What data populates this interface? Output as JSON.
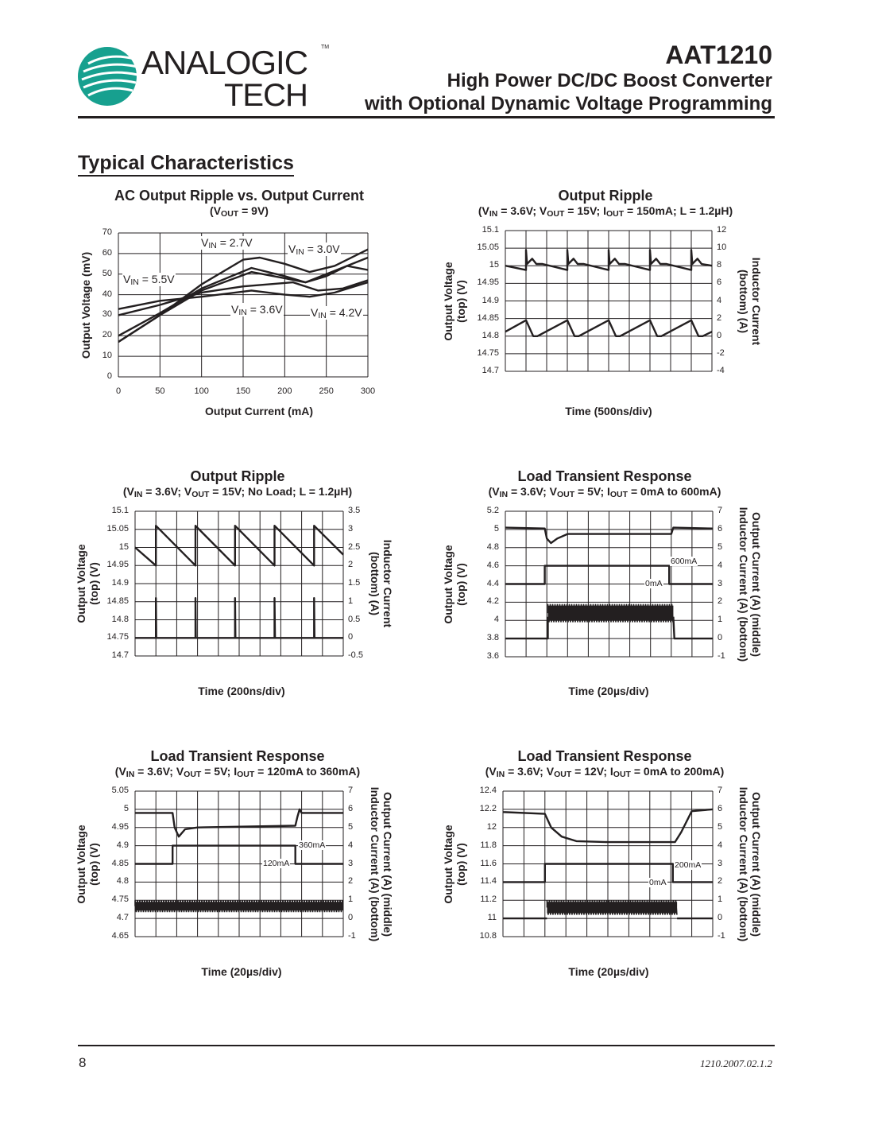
{
  "header": {
    "logo_text_top": "ANALOGIC",
    "logo_text_bottom": "TECH",
    "logo_tm": "TM",
    "logo_color": "#17a08f",
    "part_number": "AAT1210",
    "subtitle_line1": "High Power DC/DC Boost Converter",
    "subtitle_line2": "with Optional Dynamic Voltage Programming"
  },
  "section_title": "Typical Characteristics",
  "footer": {
    "page_number": "8",
    "doc_code": "1210.2007.02.1.2"
  },
  "chart_data": [
    {
      "type": "line",
      "title": "AC Output Ripple vs. Output Current",
      "subtitle": "(VOUT = 9V)",
      "xlabel": "Output Current (mA)",
      "ylabel": "Output Voltage (mV)",
      "xlim": [
        0,
        300
      ],
      "ylim": [
        0,
        70
      ],
      "xticks": [
        "0",
        "50",
        "100",
        "150",
        "200",
        "250",
        "300"
      ],
      "yticks": [
        "70",
        "60",
        "50",
        "40",
        "30",
        "20",
        "10",
        "0"
      ],
      "grid": true,
      "series": [
        {
          "name": "VIN = 2.7V",
          "axis": "left",
          "points": [
            [
              0,
              17
            ],
            [
              50,
              30
            ],
            [
              100,
              45
            ],
            [
              150,
              57
            ],
            [
              170,
              58
            ],
            [
              200,
              55
            ],
            [
              230,
              51
            ],
            [
              260,
              54
            ],
            [
              300,
              62
            ]
          ]
        },
        {
          "name": "VIN = 3.0V",
          "axis": "left",
          "points": [
            [
              0,
              20
            ],
            [
              50,
              31
            ],
            [
              100,
              43
            ],
            [
              160,
              53
            ],
            [
              200,
              49
            ],
            [
              225,
              46
            ],
            [
              250,
              49
            ],
            [
              275,
              54
            ],
            [
              300,
              52
            ]
          ]
        },
        {
          "name": "VIN = 5.5V",
          "axis": "left",
          "points": [
            [
              0,
              33
            ],
            [
              50,
              37
            ],
            [
              100,
              39
            ],
            [
              160,
              42
            ],
            [
              200,
              40
            ],
            [
              230,
              39
            ],
            [
              260,
              41
            ],
            [
              300,
              46
            ]
          ]
        },
        {
          "name": "VIN = 3.6V",
          "axis": "left",
          "points": [
            [
              0,
              17
            ],
            [
              50,
              30
            ],
            [
              100,
              42
            ],
            [
              160,
              51
            ],
            [
              200,
              48
            ],
            [
              225,
              46
            ],
            [
              250,
              50
            ],
            [
              300,
              58
            ]
          ]
        },
        {
          "name": "VIN = 4.2V",
          "axis": "left",
          "points": [
            [
              0,
              30
            ],
            [
              50,
              35
            ],
            [
              100,
              41
            ],
            [
              150,
              44
            ],
            [
              210,
              46
            ],
            [
              240,
              42
            ],
            [
              270,
              43
            ],
            [
              300,
              47
            ]
          ]
        }
      ]
    },
    {
      "type": "line",
      "title": "Output Ripple",
      "subtitle": "(VIN = 3.6V; VOUT = 15V; IOUT = 150mA; L = 1.2µH)",
      "xlabel": "Time (500ns/div)",
      "ylabel": [
        "Output Voltage",
        "(top) (V)"
      ],
      "y2label": [
        "Inductor Current",
        "(bottom) (A)"
      ],
      "xlim": [
        0,
        10
      ],
      "ylim": [
        14.7,
        15.1
      ],
      "y2lim": [
        -4,
        12
      ],
      "yticks": [
        "15.1",
        "15.05",
        "15",
        "14.95",
        "14.9",
        "14.85",
        "14.8",
        "14.75",
        "14.7"
      ],
      "y2ticks": [
        "12",
        "10",
        "8",
        "6",
        "4",
        "2",
        "0",
        "-2",
        "-4"
      ],
      "grid": true,
      "series": [
        {
          "axis": "left",
          "points": [
            [
              0,
              15.0
            ],
            [
              1,
              14.988
            ],
            [
              1,
              15.045
            ],
            [
              1.05,
              15.005
            ],
            [
              1.3,
              15.02
            ],
            [
              1.5,
              15.005
            ],
            [
              1.8,
              15.005
            ],
            [
              3,
              14.988
            ],
            [
              3,
              15.045
            ],
            [
              3.05,
              15.005
            ],
            [
              3.3,
              15.02
            ],
            [
              3.5,
              15.005
            ],
            [
              3.8,
              15.005
            ],
            [
              5,
              14.988
            ],
            [
              5,
              15.045
            ],
            [
              5.05,
              15.005
            ],
            [
              5.3,
              15.02
            ],
            [
              5.5,
              15.005
            ],
            [
              5.8,
              15.005
            ],
            [
              7,
              14.988
            ],
            [
              7,
              15.045
            ],
            [
              7.05,
              15.005
            ],
            [
              7.3,
              15.02
            ],
            [
              7.5,
              15.005
            ],
            [
              7.8,
              15.005
            ],
            [
              9,
              14.988
            ],
            [
              9,
              15.045
            ],
            [
              9.05,
              15.005
            ],
            [
              9.3,
              15.02
            ],
            [
              9.5,
              15.005
            ],
            [
              10,
              15.0
            ]
          ]
        },
        {
          "axis": "right",
          "points": [
            [
              0,
              0.5
            ],
            [
              1,
              1.8
            ],
            [
              1.35,
              0
            ],
            [
              1.55,
              0
            ],
            [
              3,
              1.8
            ],
            [
              3.35,
              0
            ],
            [
              3.55,
              0
            ],
            [
              5,
              1.8
            ],
            [
              5.35,
              0
            ],
            [
              5.55,
              0
            ],
            [
              7,
              1.8
            ],
            [
              7.35,
              0
            ],
            [
              7.55,
              0
            ],
            [
              9,
              1.8
            ],
            [
              9.35,
              0
            ],
            [
              9.55,
              0
            ],
            [
              10,
              0.5
            ]
          ]
        }
      ]
    },
    {
      "type": "line",
      "title": "Output Ripple",
      "subtitle": "(VIN = 3.6V; VOUT = 15V; No Load; L = 1.2µH)",
      "xlabel": "Time (200ns/div)",
      "ylabel": [
        "Output Voltage",
        "(top) (V)"
      ],
      "y2label": [
        "Inductor Current",
        "(bottom) (A)"
      ],
      "xlim": [
        0,
        10
      ],
      "ylim": [
        14.7,
        15.1
      ],
      "y2lim": [
        -0.5,
        3.5
      ],
      "yticks": [
        "15.1",
        "15.05",
        "15",
        "14.95",
        "14.9",
        "14.85",
        "14.8",
        "14.75",
        "14.7"
      ],
      "y2ticks": [
        "3.5",
        "3",
        "2.5",
        "2",
        "1.5",
        "1",
        "0.5",
        "0",
        "-0.5"
      ],
      "grid": true,
      "series": [
        {
          "axis": "left",
          "points": [
            [
              0,
              15.0
            ],
            [
              1,
              14.95
            ],
            [
              1,
              15.06
            ],
            [
              2.9,
              14.95
            ],
            [
              2.9,
              15.06
            ],
            [
              4.8,
              14.95
            ],
            [
              4.8,
              15.06
            ],
            [
              6.7,
              14.95
            ],
            [
              6.7,
              15.06
            ],
            [
              8.6,
              14.95
            ],
            [
              8.6,
              15.06
            ],
            [
              10,
              14.98
            ]
          ]
        },
        {
          "axis": "right",
          "points": [
            [
              0,
              0
            ],
            [
              1,
              0
            ],
            [
              1,
              1.1
            ],
            [
              1.02,
              0
            ],
            [
              2.9,
              0
            ],
            [
              2.9,
              1.1
            ],
            [
              2.92,
              0
            ],
            [
              4.8,
              0
            ],
            [
              4.8,
              1.1
            ],
            [
              4.82,
              0
            ],
            [
              6.7,
              0
            ],
            [
              6.7,
              1.1
            ],
            [
              6.72,
              0
            ],
            [
              8.6,
              0
            ],
            [
              8.6,
              1.1
            ],
            [
              8.62,
              0
            ],
            [
              10,
              0
            ]
          ]
        }
      ]
    },
    {
      "type": "line",
      "title": "Load Transient Response",
      "subtitle": "(VIN = 3.6V; VOUT = 5V; IOUT = 0mA to 600mA)",
      "xlabel": "Time (20µs/div)",
      "ylabel": [
        "Output Voltage",
        "(top) (V)"
      ],
      "y2label": [
        "Output Current (A) (middle)",
        "Inductor Current (A) (bottom)"
      ],
      "xlim": [
        0,
        10
      ],
      "ylim": [
        3.6,
        5.2
      ],
      "y2lim": [
        -1,
        7
      ],
      "yticks": [
        "5.2",
        "5",
        "4.8",
        "4.6",
        "4.4",
        "4.2",
        "4",
        "3.8",
        "3.6"
      ],
      "y2ticks": [
        "7",
        "6",
        "5",
        "4",
        "3",
        "2",
        "1",
        "0",
        "-1"
      ],
      "grid": true,
      "annotations": [
        "600mA",
        "0mA"
      ],
      "series": [
        {
          "axis": "left",
          "points": [
            [
              0,
              5.02
            ],
            [
              1.9,
              5.01
            ],
            [
              2.0,
              4.9
            ],
            [
              2.2,
              4.85
            ],
            [
              2.5,
              4.9
            ],
            [
              3,
              4.95
            ],
            [
              4,
              4.95
            ],
            [
              8.0,
              4.95
            ],
            [
              8.1,
              5.02
            ],
            [
              10,
              5.01
            ]
          ]
        },
        {
          "axis": "right",
          "points": [
            [
              0,
              3
            ],
            [
              1.9,
              3
            ],
            [
              1.9,
              4
            ],
            [
              7.9,
              4
            ],
            [
              7.9,
              3
            ],
            [
              10,
              3
            ]
          ]
        },
        {
          "axis": "right",
          "points": [
            [
              0,
              0
            ],
            [
              2.05,
              0
            ],
            [
              2.05,
              1.2
            ]
          ]
        },
        {
          "axis": "right",
          "band": {
            "x": [
              2.05,
              8.1
            ],
            "y": [
              0.9,
              1.9
            ]
          }
        },
        {
          "axis": "right",
          "points": [
            [
              8.1,
              1.2
            ],
            [
              8.15,
              0
            ],
            [
              10,
              0
            ]
          ]
        }
      ]
    },
    {
      "type": "line",
      "title": "Load Transient Response",
      "subtitle": "(VIN = 3.6V; VOUT = 5V; IOUT = 120mA to 360mA)",
      "xlabel": "Time (20µs/div)",
      "ylabel": [
        "Output Voltage",
        "(top) (V)"
      ],
      "y2label": [
        "Output Current (A) (middle)",
        "Inductor Current (A) (bottom)"
      ],
      "xlim": [
        0,
        10
      ],
      "ylim": [
        4.65,
        5.05
      ],
      "y2lim": [
        -1,
        7
      ],
      "yticks": [
        "5.05",
        "5",
        "4.95",
        "4.9",
        "4.85",
        "4.8",
        "4.75",
        "4.7",
        "4.65"
      ],
      "y2ticks": [
        "7",
        "6",
        "5",
        "4",
        "3",
        "2",
        "1",
        "0",
        "-1"
      ],
      "grid": true,
      "annotations": [
        "360mA",
        "120mA"
      ],
      "series": [
        {
          "axis": "left",
          "points": [
            [
              0,
              4.99
            ],
            [
              1.8,
              4.99
            ],
            [
              1.9,
              4.95
            ],
            [
              2.1,
              4.925
            ],
            [
              2.4,
              4.945
            ],
            [
              3,
              4.95
            ],
            [
              7.7,
              4.955
            ],
            [
              7.8,
              4.98
            ],
            [
              7.9,
              5.0
            ],
            [
              8.0,
              4.99
            ],
            [
              10,
              4.99
            ]
          ]
        },
        {
          "axis": "right",
          "points": [
            [
              0,
              3
            ],
            [
              1.8,
              3
            ],
            [
              1.8,
              4
            ],
            [
              7.7,
              4
            ],
            [
              7.7,
              3
            ],
            [
              10,
              3
            ]
          ]
        },
        {
          "axis": "right",
          "band": {
            "x": [
              0,
              10
            ],
            "y": [
              0.35,
              1.0
            ]
          }
        }
      ]
    },
    {
      "type": "line",
      "title": "Load Transient Response",
      "subtitle": "(VIN = 3.6V; VOUT = 12V; IOUT = 0mA to 200mA)",
      "xlabel": "Time (20µs/div)",
      "ylabel": [
        "Output Voltage",
        "(top) (V)"
      ],
      "y2label": [
        "Output Current (A) (middle)",
        "Inductor Current (A) (bottom)"
      ],
      "xlim": [
        0,
        10
      ],
      "ylim": [
        10.8,
        12.4
      ],
      "y2lim": [
        -1,
        7
      ],
      "yticks": [
        "12.4",
        "12.2",
        "12",
        "11.8",
        "11.6",
        "11.4",
        "11.2",
        "11",
        "10.8"
      ],
      "y2ticks": [
        "7",
        "6",
        "5",
        "4",
        "3",
        "2",
        "1",
        "0",
        "-1"
      ],
      "grid": true,
      "annotations": [
        "200mA",
        "0mA"
      ],
      "series": [
        {
          "axis": "left",
          "points": [
            [
              0,
              12.17
            ],
            [
              2,
              12.15
            ],
            [
              2.3,
              12.0
            ],
            [
              2.8,
              11.9
            ],
            [
              3.5,
              11.85
            ],
            [
              5,
              11.84
            ],
            [
              8.2,
              11.84
            ],
            [
              8.5,
              11.95
            ],
            [
              9.0,
              12.18
            ],
            [
              10,
              12.2
            ]
          ]
        },
        {
          "axis": "right",
          "points": [
            [
              0,
              2
            ],
            [
              2,
              2
            ],
            [
              2,
              3
            ],
            [
              8.1,
              3
            ],
            [
              8.1,
              2
            ],
            [
              10,
              2
            ]
          ]
        },
        {
          "axis": "right",
          "points": [
            [
              0,
              0
            ],
            [
              2.1,
              0
            ]
          ]
        },
        {
          "axis": "right",
          "band": {
            "x": [
              2.1,
              8.3
            ],
            "y": [
              0.2,
              1.0
            ]
          }
        },
        {
          "axis": "right",
          "points": [
            [
              8.3,
              0
            ],
            [
              10,
              0
            ]
          ]
        }
      ]
    }
  ]
}
